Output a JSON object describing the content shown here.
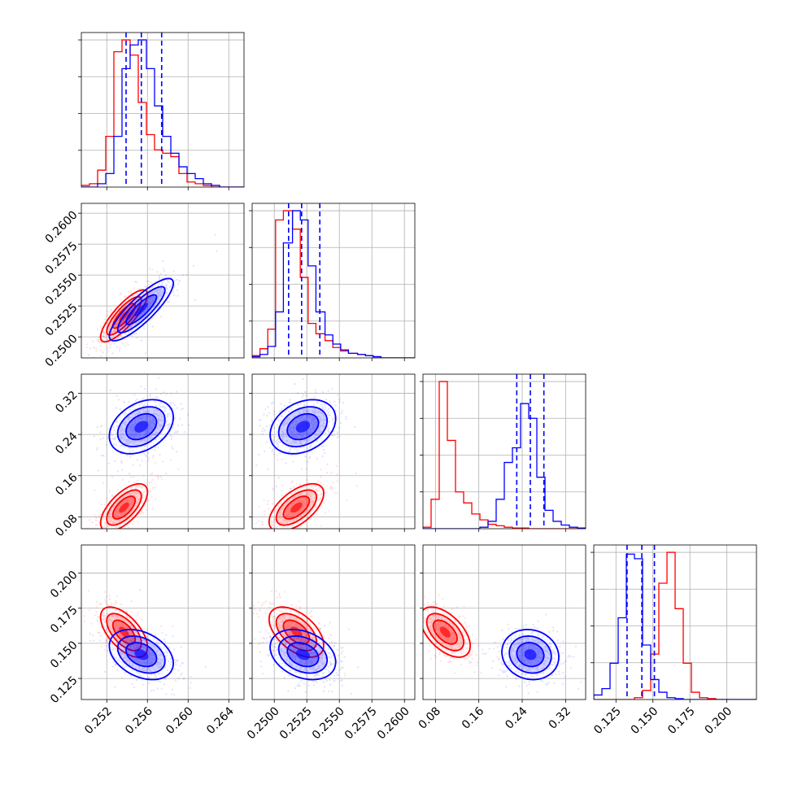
{
  "chart_data": {
    "type": "corner",
    "grid": true,
    "params": [
      {
        "ticks": [
          0.252,
          0.256,
          0.26,
          0.264
        ],
        "labels": [
          "0.252",
          "0.256",
          "0.260",
          "0.264"
        ],
        "range": [
          0.2495,
          0.2655
        ]
      },
      {
        "ticks": [
          0.25,
          0.2525,
          0.255,
          0.2575,
          0.26
        ],
        "labels": [
          "0.2500",
          "0.2525",
          "0.2550",
          "0.2575",
          "0.2600"
        ],
        "range": [
          0.2483,
          0.2608
        ]
      },
      {
        "ticks": [
          0.08,
          0.16,
          0.24,
          0.32
        ],
        "labels": [
          "0.08",
          "0.16",
          "0.24",
          "0.32"
        ],
        "range": [
          0.057,
          0.357
        ]
      },
      {
        "ticks": [
          0.125,
          0.15,
          0.175,
          0.2
        ],
        "labels": [
          "0.125",
          "0.150",
          "0.175",
          "0.200"
        ],
        "range": [
          0.11,
          0.22
        ]
      }
    ],
    "series": [
      {
        "color": "#ff0000",
        "mean": [
          0.2537,
          0.2517,
          0.098,
          0.158
        ],
        "std": [
          0.0011,
          0.001,
          0.022,
          0.0085
        ],
        "corr": [
          [
            1,
            0.82,
            0.65,
            -0.6
          ],
          [
            0.82,
            1,
            0.6,
            -0.52
          ],
          [
            0.65,
            0.6,
            1,
            -0.55
          ],
          [
            -0.6,
            -0.52,
            -0.55,
            1
          ]
        ],
        "hist": [
          {
            "edges": [
              0.2495,
              0.2503,
              0.2511,
              0.2519,
              0.2527,
              0.2535,
              0.2543,
              0.2551,
              0.2559,
              0.2567,
              0.2575,
              0.2583,
              0.2591,
              0.2599,
              0.2607,
              0.2615,
              0.2623,
              0.2631,
              0.2639,
              0.2647,
              0.2655
            ],
            "counts": [
              1,
              2,
              10,
              30,
              80,
              87,
              78,
              50,
              31,
              22,
              20,
              18,
              8,
              3,
              2,
              1,
              0,
              0,
              0,
              0
            ]
          },
          {
            "edges": [
              0.2483,
              0.2489,
              0.2495,
              0.2501,
              0.2507,
              0.2514,
              0.252,
              0.2526,
              0.2532,
              0.2539,
              0.2545,
              0.2551,
              0.2557,
              0.2564,
              0.257,
              0.2576,
              0.2582,
              0.2589,
              0.2595,
              0.2601,
              0.2608
            ],
            "counts": [
              2,
              8,
              25,
              120,
              128,
              112,
              70,
              30,
              21,
              15,
              9,
              6,
              4,
              3,
              2,
              1,
              0,
              0,
              0,
              0
            ]
          },
          {
            "edges": [
              0.057,
              0.072,
              0.087,
              0.102,
              0.117,
              0.132,
              0.147,
              0.162,
              0.177,
              0.192,
              0.207,
              0.222,
              0.237,
              0.252,
              0.267,
              0.282,
              0.297,
              0.312,
              0.327,
              0.342,
              0.357
            ],
            "counts": [
              2,
              40,
              200,
              120,
              50,
              35,
              20,
              12,
              6,
              4,
              2,
              1,
              1,
              0,
              0,
              0,
              0,
              0,
              0,
              0
            ]
          },
          {
            "edges": [
              0.11,
              0.1155,
              0.121,
              0.1265,
              0.132,
              0.1375,
              0.143,
              0.1485,
              0.154,
              0.1595,
              0.165,
              0.1705,
              0.176,
              0.1815,
              0.187,
              0.1925,
              0.198,
              0.2035,
              0.209,
              0.2145,
              0.22
            ],
            "counts": [
              0,
              0,
              0,
              0,
              0,
              2,
              10,
              50,
              128,
              162,
              100,
              40,
              8,
              2,
              1,
              0,
              0,
              0,
              0,
              0
            ]
          }
        ]
      },
      {
        "color": "#0000ff",
        "mean": [
          0.2554,
          0.2522,
          0.255,
          0.142
        ],
        "std": [
          0.0015,
          0.0012,
          0.025,
          0.0085
        ],
        "corr": [
          [
            1,
            0.85,
            0.35,
            -0.35
          ],
          [
            0.85,
            1,
            0.3,
            -0.3
          ],
          [
            0.35,
            0.3,
            1,
            -0.1
          ],
          [
            -0.35,
            -0.3,
            -0.1,
            1
          ]
        ],
        "quantiles": [
          [
            0.2539,
            0.2554,
            0.2574
          ],
          [
            0.2511,
            0.2521,
            0.2535
          ],
          [
            0.23,
            0.255,
            0.28
          ],
          [
            0.1325,
            0.1425,
            0.151
          ]
        ],
        "hist": [
          {
            "edges": [
              0.2495,
              0.2503,
              0.2511,
              0.2519,
              0.2527,
              0.2535,
              0.2543,
              0.2551,
              0.2559,
              0.2567,
              0.2575,
              0.2583,
              0.2591,
              0.2599,
              0.2607,
              0.2615,
              0.2623,
              0.2631,
              0.2639,
              0.2647,
              0.2655
            ],
            "counts": [
              0,
              0,
              2,
              8,
              30,
              70,
              84,
              87,
              70,
              48,
              30,
              20,
              12,
              8,
              5,
              2,
              1,
              0,
              0,
              0
            ]
          },
          {
            "edges": [
              0.2483,
              0.2489,
              0.2495,
              0.2501,
              0.2507,
              0.2514,
              0.252,
              0.2526,
              0.2532,
              0.2539,
              0.2545,
              0.2551,
              0.2557,
              0.2564,
              0.257,
              0.2576,
              0.2582,
              0.2589,
              0.2595,
              0.2601,
              0.2608
            ],
            "counts": [
              1,
              3,
              10,
              40,
              100,
              128,
              120,
              80,
              40,
              20,
              12,
              7,
              4,
              3,
              2,
              1,
              0,
              0,
              0,
              0
            ]
          },
          {
            "edges": [
              0.057,
              0.072,
              0.087,
              0.102,
              0.117,
              0.132,
              0.147,
              0.162,
              0.177,
              0.192,
              0.207,
              0.222,
              0.237,
              0.252,
              0.267,
              0.282,
              0.297,
              0.312,
              0.327,
              0.342,
              0.357
            ],
            "counts": [
              0,
              0,
              0,
              0,
              0,
              0,
              0,
              2,
              10,
              40,
              90,
              110,
              170,
              150,
              70,
              25,
              10,
              5,
              2,
              1
            ]
          },
          {
            "edges": [
              0.11,
              0.1155,
              0.121,
              0.1265,
              0.132,
              0.1375,
              0.143,
              0.1485,
              0.154,
              0.1595,
              0.165,
              0.1705,
              0.176,
              0.1815,
              0.187,
              0.1925,
              0.198,
              0.2035,
              0.209,
              0.2145,
              0.22
            ],
            "counts": [
              5,
              12,
              40,
              90,
              160,
              155,
              60,
              22,
              8,
              2,
              1,
              0,
              0,
              0,
              0,
              0,
              0,
              0,
              0,
              0
            ]
          }
        ]
      }
    ]
  }
}
